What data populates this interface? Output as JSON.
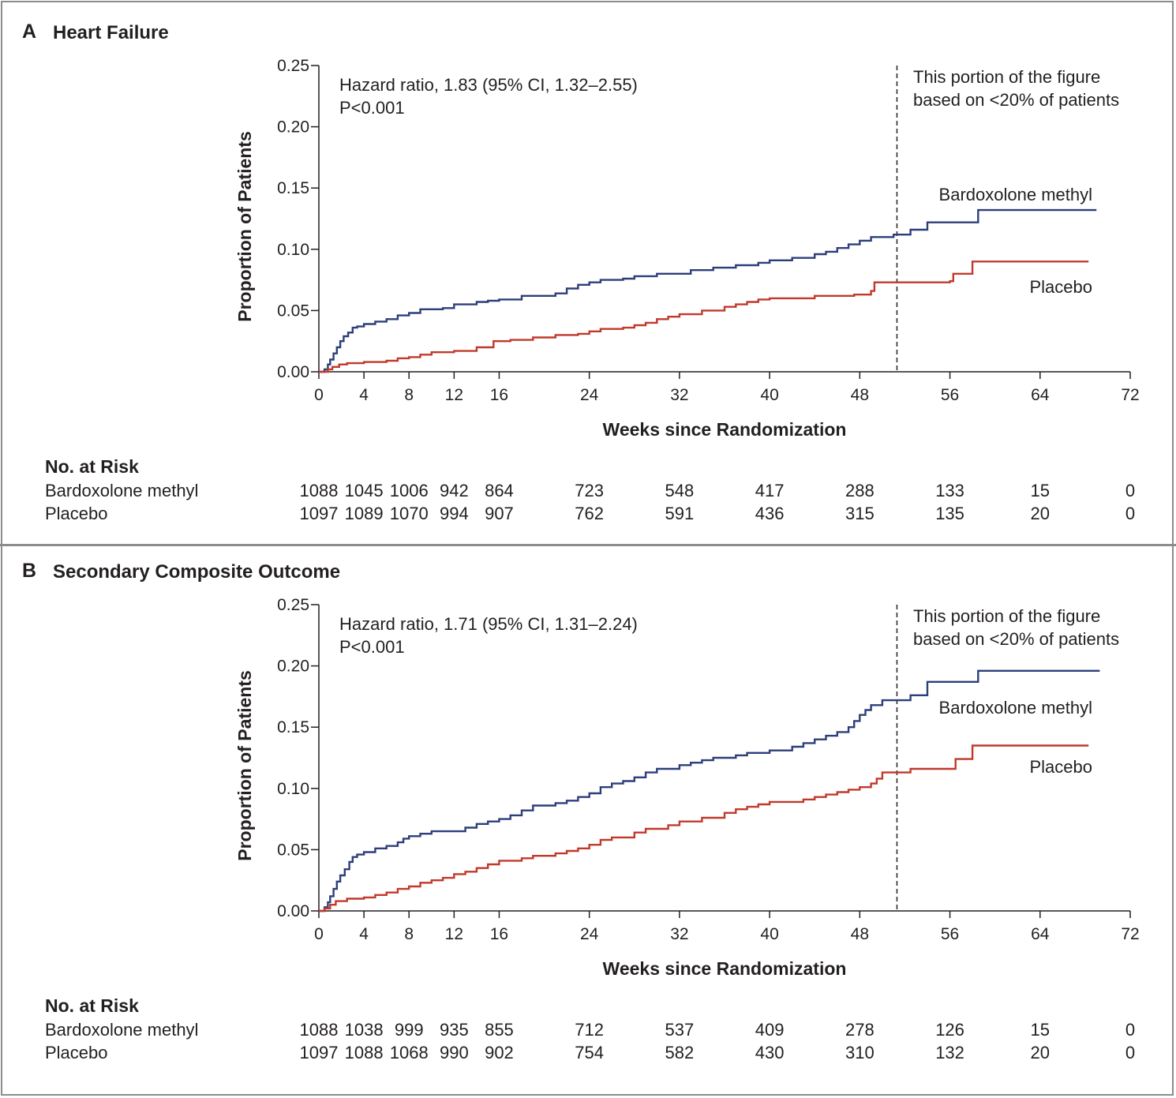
{
  "chart_data": [
    {
      "type": "line",
      "panel_letter": "A",
      "title": "Heart Failure",
      "xlabel": "Weeks since Randomization",
      "ylabel": "Proportion of Patients",
      "xlim": [
        0,
        72
      ],
      "ylim": [
        0,
        0.25
      ],
      "x_ticks": [
        "0",
        "4",
        "8",
        "12",
        "16",
        "24",
        "32",
        "40",
        "48",
        "56",
        "64",
        "72"
      ],
      "y_ticks": [
        "0.00",
        "0.05",
        "0.10",
        "0.15",
        "0.20",
        "0.25"
      ],
      "annotation_lines": [
        "Hazard ratio, 1.83 (95% CI, 1.32–2.55)",
        "P<0.001"
      ],
      "cutoff_week": 51.3,
      "cutoff_note": [
        "This portion of the figure",
        "based on <20% of patients"
      ],
      "series": [
        {
          "name": "Bardoxolone methyl",
          "color": "#2c3e7a",
          "points": [
            [
              0,
              0
            ],
            [
              0.5,
              0.002
            ],
            [
              0.8,
              0.006
            ],
            [
              1.0,
              0.01
            ],
            [
              1.3,
              0.015
            ],
            [
              1.6,
              0.02
            ],
            [
              1.9,
              0.025
            ],
            [
              2.2,
              0.029
            ],
            [
              2.6,
              0.032
            ],
            [
              3.0,
              0.036
            ],
            [
              3.4,
              0.037
            ],
            [
              4,
              0.039
            ],
            [
              5,
              0.041
            ],
            [
              6,
              0.043
            ],
            [
              7,
              0.046
            ],
            [
              8,
              0.048
            ],
            [
              9,
              0.051
            ],
            [
              11,
              0.052
            ],
            [
              12,
              0.055
            ],
            [
              14,
              0.057
            ],
            [
              15,
              0.058
            ],
            [
              16,
              0.059
            ],
            [
              18,
              0.062
            ],
            [
              21,
              0.064
            ],
            [
              22,
              0.068
            ],
            [
              23,
              0.071
            ],
            [
              24,
              0.073
            ],
            [
              25,
              0.075
            ],
            [
              27,
              0.076
            ],
            [
              28,
              0.078
            ],
            [
              30,
              0.08
            ],
            [
              33,
              0.083
            ],
            [
              35,
              0.085
            ],
            [
              37,
              0.087
            ],
            [
              39,
              0.089
            ],
            [
              40,
              0.091
            ],
            [
              42,
              0.093
            ],
            [
              44,
              0.096
            ],
            [
              45,
              0.098
            ],
            [
              46,
              0.101
            ],
            [
              47,
              0.104
            ],
            [
              48,
              0.107
            ],
            [
              49,
              0.11
            ],
            [
              51,
              0.112
            ],
            [
              52.5,
              0.116
            ],
            [
              54,
              0.122
            ],
            [
              58.5,
              0.132
            ],
            [
              69,
              0.132
            ]
          ]
        },
        {
          "name": "Placebo",
          "color": "#c0392b",
          "points": [
            [
              0,
              0
            ],
            [
              0.8,
              0.002
            ],
            [
              1.2,
              0.004
            ],
            [
              1.8,
              0.006
            ],
            [
              2.5,
              0.007
            ],
            [
              4,
              0.008
            ],
            [
              6,
              0.009
            ],
            [
              7,
              0.011
            ],
            [
              8,
              0.012
            ],
            [
              9,
              0.014
            ],
            [
              10,
              0.016
            ],
            [
              12,
              0.017
            ],
            [
              14,
              0.02
            ],
            [
              15.5,
              0.025
            ],
            [
              17,
              0.026
            ],
            [
              19,
              0.028
            ],
            [
              21,
              0.03
            ],
            [
              23,
              0.031
            ],
            [
              24,
              0.033
            ],
            [
              25,
              0.035
            ],
            [
              27,
              0.036
            ],
            [
              28,
              0.038
            ],
            [
              29,
              0.04
            ],
            [
              30,
              0.043
            ],
            [
              31,
              0.045
            ],
            [
              32,
              0.047
            ],
            [
              34,
              0.05
            ],
            [
              36,
              0.053
            ],
            [
              37,
              0.055
            ],
            [
              38,
              0.057
            ],
            [
              39,
              0.059
            ],
            [
              40,
              0.06
            ],
            [
              44,
              0.062
            ],
            [
              47.5,
              0.063
            ],
            [
              49,
              0.066
            ],
            [
              49.3,
              0.073
            ],
            [
              56,
              0.074
            ],
            [
              56.3,
              0.08
            ],
            [
              58,
              0.09
            ],
            [
              68.3,
              0.09
            ]
          ]
        }
      ],
      "risk_table": {
        "heading": "No. at Risk",
        "weeks": [
          0,
          4,
          8,
          12,
          16,
          24,
          32,
          40,
          48,
          56,
          64,
          72
        ],
        "rows": [
          {
            "label": "Bardoxolone methyl",
            "values": [
              "1088",
              "1045",
              "1006",
              "942",
              "864",
              "723",
              "548",
              "417",
              "288",
              "133",
              "15",
              "0"
            ]
          },
          {
            "label": "Placebo",
            "values": [
              "1097",
              "1089",
              "1070",
              "994",
              "907",
              "762",
              "591",
              "436",
              "315",
              "135",
              "20",
              "0"
            ]
          }
        ]
      }
    },
    {
      "type": "line",
      "panel_letter": "B",
      "title": "Secondary Composite Outcome",
      "xlabel": "Weeks since Randomization",
      "ylabel": "Proportion of Patients",
      "xlim": [
        0,
        72
      ],
      "ylim": [
        0,
        0.25
      ],
      "x_ticks": [
        "0",
        "4",
        "8",
        "12",
        "16",
        "24",
        "32",
        "40",
        "48",
        "56",
        "64",
        "72"
      ],
      "y_ticks": [
        "0.00",
        "0.05",
        "0.10",
        "0.15",
        "0.20",
        "0.25"
      ],
      "annotation_lines": [
        "Hazard ratio, 1.71 (95% CI, 1.31–2.24)",
        "P<0.001"
      ],
      "cutoff_week": 51.3,
      "cutoff_note": [
        "This portion of the figure",
        "based on <20% of patients"
      ],
      "series": [
        {
          "name": "Bardoxolone methyl",
          "color": "#2c3e7a",
          "points": [
            [
              0,
              0
            ],
            [
              0.5,
              0.003
            ],
            [
              0.8,
              0.007
            ],
            [
              1.0,
              0.012
            ],
            [
              1.3,
              0.018
            ],
            [
              1.6,
              0.024
            ],
            [
              1.9,
              0.029
            ],
            [
              2.3,
              0.034
            ],
            [
              2.7,
              0.04
            ],
            [
              3.0,
              0.044
            ],
            [
              3.4,
              0.046
            ],
            [
              4,
              0.048
            ],
            [
              5,
              0.051
            ],
            [
              6,
              0.053
            ],
            [
              7,
              0.056
            ],
            [
              7.5,
              0.059
            ],
            [
              8,
              0.061
            ],
            [
              9,
              0.063
            ],
            [
              10,
              0.065
            ],
            [
              13,
              0.068
            ],
            [
              14,
              0.071
            ],
            [
              15,
              0.073
            ],
            [
              16,
              0.075
            ],
            [
              17,
              0.078
            ],
            [
              18,
              0.082
            ],
            [
              19,
              0.086
            ],
            [
              21,
              0.088
            ],
            [
              22,
              0.09
            ],
            [
              23,
              0.093
            ],
            [
              24,
              0.096
            ],
            [
              25,
              0.101
            ],
            [
              26,
              0.104
            ],
            [
              27,
              0.106
            ],
            [
              28,
              0.109
            ],
            [
              29,
              0.113
            ],
            [
              30,
              0.116
            ],
            [
              32,
              0.119
            ],
            [
              33,
              0.121
            ],
            [
              34,
              0.123
            ],
            [
              35,
              0.125
            ],
            [
              37,
              0.127
            ],
            [
              38,
              0.129
            ],
            [
              40,
              0.131
            ],
            [
              42,
              0.134
            ],
            [
              43,
              0.137
            ],
            [
              44,
              0.14
            ],
            [
              45,
              0.143
            ],
            [
              46,
              0.146
            ],
            [
              47,
              0.15
            ],
            [
              47.5,
              0.155
            ],
            [
              48,
              0.16
            ],
            [
              48.5,
              0.164
            ],
            [
              49,
              0.168
            ],
            [
              50,
              0.172
            ],
            [
              52.5,
              0.176
            ],
            [
              54,
              0.187
            ],
            [
              58.5,
              0.196
            ],
            [
              69.3,
              0.196
            ]
          ]
        },
        {
          "name": "Placebo",
          "color": "#c0392b",
          "points": [
            [
              0,
              0
            ],
            [
              0.5,
              0.002
            ],
            [
              1.0,
              0.005
            ],
            [
              1.5,
              0.008
            ],
            [
              2.5,
              0.01
            ],
            [
              4,
              0.011
            ],
            [
              5,
              0.013
            ],
            [
              6,
              0.015
            ],
            [
              7,
              0.018
            ],
            [
              8,
              0.02
            ],
            [
              9,
              0.023
            ],
            [
              10,
              0.025
            ],
            [
              11,
              0.027
            ],
            [
              12,
              0.03
            ],
            [
              13,
              0.032
            ],
            [
              14,
              0.035
            ],
            [
              15,
              0.038
            ],
            [
              16,
              0.041
            ],
            [
              18,
              0.043
            ],
            [
              19,
              0.045
            ],
            [
              21,
              0.047
            ],
            [
              22,
              0.049
            ],
            [
              23,
              0.051
            ],
            [
              24,
              0.054
            ],
            [
              25,
              0.058
            ],
            [
              26,
              0.06
            ],
            [
              28,
              0.064
            ],
            [
              29,
              0.067
            ],
            [
              31,
              0.07
            ],
            [
              32,
              0.073
            ],
            [
              34,
              0.076
            ],
            [
              36,
              0.08
            ],
            [
              37,
              0.083
            ],
            [
              38,
              0.085
            ],
            [
              39,
              0.087
            ],
            [
              40,
              0.089
            ],
            [
              43,
              0.091
            ],
            [
              44,
              0.093
            ],
            [
              45,
              0.095
            ],
            [
              46,
              0.097
            ],
            [
              47,
              0.099
            ],
            [
              48,
              0.101
            ],
            [
              49,
              0.104
            ],
            [
              49.5,
              0.108
            ],
            [
              50,
              0.113
            ],
            [
              52.5,
              0.116
            ],
            [
              56.5,
              0.124
            ],
            [
              58,
              0.135
            ],
            [
              68.3,
              0.135
            ]
          ]
        }
      ],
      "risk_table": {
        "heading": "No. at Risk",
        "weeks": [
          0,
          4,
          8,
          12,
          16,
          24,
          32,
          40,
          48,
          56,
          64,
          72
        ],
        "rows": [
          {
            "label": "Bardoxolone methyl",
            "values": [
              "1088",
              "1038",
              "999",
              "935",
              "855",
              "712",
              "537",
              "409",
              "278",
              "126",
              "15",
              "0"
            ]
          },
          {
            "label": "Placebo",
            "values": [
              "1097",
              "1088",
              "1068",
              "990",
              "902",
              "754",
              "582",
              "430",
              "310",
              "132",
              "20",
              "0"
            ]
          }
        ]
      }
    }
  ]
}
